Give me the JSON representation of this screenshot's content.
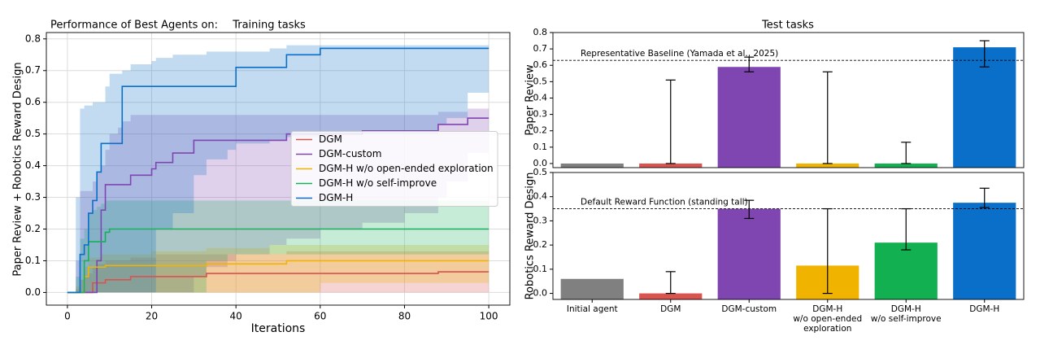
{
  "chart_data": [
    {
      "type": "line",
      "step": "post",
      "suptitle": "Performance of Best Agents on:",
      "title": "Training tasks",
      "xlabel": "Iterations",
      "ylabel": "Paper Review + Robotics Reward Design",
      "xlim": [
        -5,
        105
      ],
      "xticks": [
        0,
        20,
        40,
        60,
        80,
        100
      ],
      "ylim": [
        -0.04,
        0.82
      ],
      "yticks": [
        {
          "value": 0,
          "label": "0.0"
        },
        0.1,
        0.2,
        0.3,
        0.4,
        0.5,
        0.6,
        0.7,
        0.8
      ],
      "grid": true,
      "legend": "center right",
      "x": [
        0,
        2,
        3,
        4,
        5,
        6,
        7,
        8,
        9,
        10,
        12,
        13,
        15,
        20,
        21,
        25,
        30,
        33,
        38,
        40,
        48,
        52,
        60,
        70,
        80,
        88,
        90,
        95,
        100
      ],
      "series": [
        {
          "name": "DGM",
          "color": "#d9534f",
          "values": [
            0,
            0,
            0,
            0,
            0,
            0.03,
            0.03,
            0.03,
            0.04,
            0.04,
            0.04,
            0.04,
            0.05,
            0.05,
            0.05,
            0.05,
            0.05,
            0.06,
            0.06,
            0.06,
            0.06,
            0.06,
            0.06,
            0.06,
            0.06,
            0.065,
            0.065,
            0.065,
            0.065
          ],
          "upper": [
            0,
            0.01,
            0.04,
            0.05,
            0.06,
            0.08,
            0.09,
            0.09,
            0.1,
            0.1,
            0.1,
            0.1,
            0.11,
            0.11,
            0.12,
            0.12,
            0.12,
            0.12,
            0.12,
            0.12,
            0.12,
            0.13,
            0.13,
            0.13,
            0.13,
            0.13,
            0.13,
            0.13,
            0.13
          ],
          "lower": [
            0,
            0,
            0,
            0,
            0,
            0,
            0,
            0,
            0,
            0,
            0,
            0,
            0,
            0,
            0,
            0,
            0,
            0,
            0,
            0,
            0,
            0,
            0,
            0,
            0,
            0,
            0,
            0,
            0
          ]
        },
        {
          "name": "DGM-custom",
          "color": "#7f45b0",
          "values": [
            0,
            0,
            0,
            0,
            0,
            0,
            0.1,
            0.26,
            0.34,
            0.34,
            0.34,
            0.34,
            0.37,
            0.39,
            0.41,
            0.44,
            0.48,
            0.48,
            0.48,
            0.48,
            0.48,
            0.5,
            0.5,
            0.51,
            0.51,
            0.53,
            0.53,
            0.55,
            0.55
          ],
          "upper": [
            0,
            0.1,
            0.32,
            0.32,
            0.32,
            0.35,
            0.38,
            0.4,
            0.45,
            0.5,
            0.52,
            0.54,
            0.56,
            0.56,
            0.56,
            0.56,
            0.56,
            0.56,
            0.56,
            0.56,
            0.56,
            0.56,
            0.56,
            0.56,
            0.56,
            0.57,
            0.57,
            0.58,
            0.58
          ],
          "lower": [
            0,
            0,
            0,
            0,
            0,
            0,
            0,
            0,
            0,
            0,
            0,
            0,
            0,
            0,
            0,
            0,
            0.05,
            0.08,
            0.1,
            0.12,
            0.15,
            0.17,
            0.2,
            0.22,
            0.25,
            0.3,
            0.35,
            0.44,
            0.44
          ]
        },
        {
          "name": "DGM-H w/o open-ended exploration",
          "color": "#f0b400",
          "values": [
            0,
            0,
            0,
            0.05,
            0.08,
            0.08,
            0.08,
            0.08,
            0.085,
            0.085,
            0.085,
            0.085,
            0.085,
            0.085,
            0.085,
            0.085,
            0.085,
            0.09,
            0.09,
            0.09,
            0.09,
            0.1,
            0.1,
            0.1,
            0.1,
            0.1,
            0.1,
            0.1,
            0.1
          ],
          "upper": [
            0,
            0.02,
            0.04,
            0.08,
            0.11,
            0.11,
            0.11,
            0.12,
            0.12,
            0.12,
            0.12,
            0.12,
            0.12,
            0.13,
            0.13,
            0.13,
            0.13,
            0.14,
            0.14,
            0.14,
            0.15,
            0.15,
            0.15,
            0.15,
            0.15,
            0.15,
            0.15,
            0.15,
            0.15
          ],
          "lower": [
            0,
            0,
            0,
            0,
            0,
            0,
            0,
            0,
            0,
            0,
            0,
            0,
            0,
            0,
            0,
            0,
            0,
            0,
            0,
            0,
            0,
            0,
            0.03,
            0.03,
            0.03,
            0.03,
            0.03,
            0.03,
            0.03
          ]
        },
        {
          "name": "DGM-H w/o self-improve",
          "color": "#1aaf5d",
          "values": [
            0,
            0,
            0,
            0.1,
            0.16,
            0.16,
            0.16,
            0.16,
            0.19,
            0.2,
            0.2,
            0.2,
            0.2,
            0.2,
            0.2,
            0.2,
            0.2,
            0.2,
            0.2,
            0.2,
            0.2,
            0.2,
            0.2,
            0.2,
            0.2,
            0.2,
            0.2,
            0.2,
            0.2
          ],
          "upper": [
            0,
            0.05,
            0.17,
            0.2,
            0.25,
            0.26,
            0.27,
            0.28,
            0.29,
            0.29,
            0.29,
            0.29,
            0.29,
            0.29,
            0.29,
            0.29,
            0.29,
            0.29,
            0.29,
            0.29,
            0.29,
            0.29,
            0.29,
            0.29,
            0.29,
            0.29,
            0.29,
            0.29,
            0.29
          ],
          "lower": [
            0,
            0,
            0,
            0,
            0,
            0,
            0,
            0,
            0,
            0,
            0,
            0,
            0,
            0,
            0,
            0,
            0,
            0.1,
            0.12,
            0.12,
            0.12,
            0.12,
            0.12,
            0.12,
            0.12,
            0.12,
            0.12,
            0.12,
            0.12
          ]
        },
        {
          "name": "DGM-H",
          "color": "#0a6fc9",
          "values": [
            0,
            0,
            0.12,
            0.15,
            0.25,
            0.29,
            0.38,
            0.47,
            0.47,
            0.47,
            0.47,
            0.65,
            0.65,
            0.65,
            0.65,
            0.65,
            0.65,
            0.65,
            0.65,
            0.71,
            0.71,
            0.75,
            0.77,
            0.77,
            0.77,
            0.77,
            0.77,
            0.77,
            0.77
          ],
          "upper": [
            0,
            0.3,
            0.58,
            0.59,
            0.59,
            0.6,
            0.6,
            0.6,
            0.65,
            0.69,
            0.69,
            0.7,
            0.72,
            0.73,
            0.74,
            0.75,
            0.75,
            0.76,
            0.76,
            0.76,
            0.77,
            0.78,
            0.78,
            0.78,
            0.78,
            0.78,
            0.78,
            0.78,
            0.78
          ],
          "lower": [
            0,
            0,
            0,
            0,
            0,
            0,
            0,
            0,
            0,
            0,
            0,
            0,
            0,
            0,
            0.2,
            0.25,
            0.37,
            0.42,
            0.45,
            0.47,
            0.48,
            0.49,
            0.5,
            0.5,
            0.5,
            0.53,
            0.55,
            0.63,
            0.63
          ]
        }
      ]
    },
    {
      "type": "bar",
      "title": "Test tasks",
      "ylabel": "Paper Review",
      "ylim": [
        -0.025,
        0.8
      ],
      "yticks": [
        {
          "value": 0,
          "label": "0.0"
        },
        0.1,
        0.2,
        0.3,
        0.4,
        0.5,
        0.6,
        0.7,
        0.8
      ],
      "colors": [
        "#808080",
        "#d9534f",
        "#7f45b0",
        "#f0b400",
        "#12b050",
        "#0a6fc9"
      ],
      "values": [
        0,
        0,
        0.59,
        0,
        0,
        0.71
      ],
      "err_low": [
        null,
        0,
        0.56,
        0,
        0,
        0.59
      ],
      "err_high": [
        null,
        0.51,
        0.65,
        0.56,
        0.13,
        0.75
      ],
      "hline": {
        "value": 0.63,
        "label": "Representative Baseline (Yamada et al., 2025)"
      }
    },
    {
      "type": "bar",
      "ylabel": "Robotics Reward Design",
      "ylim": [
        -0.025,
        0.5
      ],
      "yticks": [
        {
          "value": 0,
          "label": "0.0"
        },
        0.1,
        0.2,
        0.3,
        0.4,
        0.5
      ],
      "categories": [
        "Initial agent",
        "DGM",
        "DGM-custom",
        "DGM-H\nw/o open-ended\nexploration",
        "DGM-H\nw/o self-improve",
        "DGM-H"
      ],
      "colors": [
        "#808080",
        "#d9534f",
        "#7f45b0",
        "#f0b400",
        "#12b050",
        "#0a6fc9"
      ],
      "values": [
        0.06,
        0,
        0.35,
        0.115,
        0.21,
        0.375
      ],
      "err_low": [
        null,
        0,
        0.31,
        0,
        0.18,
        0.355
      ],
      "err_high": [
        null,
        0.09,
        0.385,
        0.35,
        0.35,
        0.435
      ],
      "hline": {
        "value": 0.35,
        "label": "Default Reward Function (standing tall)"
      }
    }
  ]
}
